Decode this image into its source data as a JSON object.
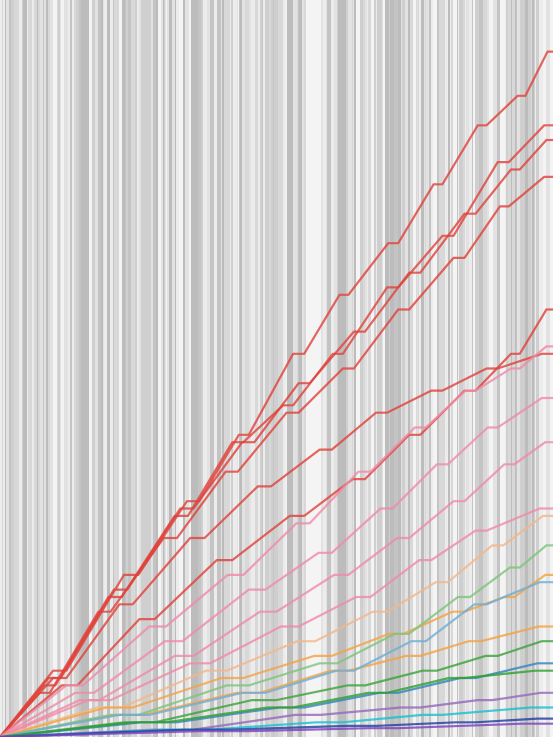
{
  "chart_data": {
    "type": "line",
    "step": true,
    "title": "",
    "xlabel": "",
    "ylabel": "",
    "axes_visible": false,
    "grid": false,
    "legend": "none",
    "xlim": [
      0,
      1
    ],
    "ylim": [
      0,
      1
    ],
    "background": {
      "style": "vertical-stripes",
      "colors": [
        "#cfcfcf",
        "#d8d8d8",
        "#e2e2e2",
        "#ececec",
        "#f4f4f4",
        "#c4c4c4",
        "#bcbcbc"
      ]
    },
    "series": [
      {
        "color": "#e0413a",
        "points": [
          [
            0.0,
            0.0
          ],
          [
            0.12,
            0.09
          ],
          [
            0.25,
            0.22
          ],
          [
            0.36,
            0.32
          ],
          [
            0.45,
            0.41
          ],
          [
            0.55,
            0.52
          ],
          [
            0.63,
            0.6
          ],
          [
            0.72,
            0.67
          ],
          [
            0.8,
            0.75
          ],
          [
            0.88,
            0.83
          ],
          [
            0.95,
            0.87
          ],
          [
            1.0,
            0.93
          ]
        ]
      },
      {
        "color": "#e0413a",
        "points": [
          [
            0.0,
            0.0
          ],
          [
            0.1,
            0.07
          ],
          [
            0.22,
            0.19
          ],
          [
            0.34,
            0.3
          ],
          [
            0.44,
            0.4
          ],
          [
            0.53,
            0.45
          ],
          [
            0.62,
            0.52
          ],
          [
            0.72,
            0.61
          ],
          [
            0.82,
            0.68
          ],
          [
            0.92,
            0.78
          ],
          [
            1.0,
            0.83
          ]
        ]
      },
      {
        "color": "#e0413a",
        "points": [
          [
            0.0,
            0.0
          ],
          [
            0.11,
            0.08
          ],
          [
            0.23,
            0.2
          ],
          [
            0.35,
            0.31
          ],
          [
            0.46,
            0.4
          ],
          [
            0.56,
            0.48
          ],
          [
            0.66,
            0.55
          ],
          [
            0.76,
            0.63
          ],
          [
            0.86,
            0.71
          ],
          [
            0.94,
            0.77
          ],
          [
            1.0,
            0.81
          ]
        ]
      },
      {
        "color": "#e0413a",
        "points": [
          [
            0.0,
            0.0
          ],
          [
            0.09,
            0.06
          ],
          [
            0.2,
            0.17
          ],
          [
            0.32,
            0.27
          ],
          [
            0.43,
            0.36
          ],
          [
            0.54,
            0.44
          ],
          [
            0.64,
            0.5
          ],
          [
            0.74,
            0.58
          ],
          [
            0.84,
            0.65
          ],
          [
            0.92,
            0.72
          ],
          [
            1.0,
            0.76
          ]
        ]
      },
      {
        "color": "#e0413a",
        "points": [
          [
            0.0,
            0.0
          ],
          [
            0.12,
            0.08
          ],
          [
            0.24,
            0.18
          ],
          [
            0.37,
            0.27
          ],
          [
            0.49,
            0.34
          ],
          [
            0.6,
            0.39
          ],
          [
            0.7,
            0.44
          ],
          [
            0.8,
            0.47
          ],
          [
            0.9,
            0.5
          ],
          [
            1.0,
            0.52
          ]
        ]
      },
      {
        "color": "#e0413a",
        "points": [
          [
            0.0,
            0.0
          ],
          [
            0.14,
            0.07
          ],
          [
            0.28,
            0.16
          ],
          [
            0.42,
            0.24
          ],
          [
            0.55,
            0.3
          ],
          [
            0.66,
            0.35
          ],
          [
            0.76,
            0.41
          ],
          [
            0.86,
            0.47
          ],
          [
            0.94,
            0.52
          ],
          [
            1.0,
            0.58
          ]
        ]
      },
      {
        "color": "#f08aa8",
        "points": [
          [
            0.0,
            0.0
          ],
          [
            0.15,
            0.07
          ],
          [
            0.3,
            0.15
          ],
          [
            0.44,
            0.22
          ],
          [
            0.56,
            0.29
          ],
          [
            0.67,
            0.36
          ],
          [
            0.77,
            0.42
          ],
          [
            0.86,
            0.47
          ],
          [
            0.94,
            0.5
          ],
          [
            1.0,
            0.53
          ]
        ]
      },
      {
        "color": "#f08aa8",
        "points": [
          [
            0.0,
            0.0
          ],
          [
            0.17,
            0.06
          ],
          [
            0.33,
            0.13
          ],
          [
            0.48,
            0.2
          ],
          [
            0.6,
            0.25
          ],
          [
            0.71,
            0.31
          ],
          [
            0.81,
            0.37
          ],
          [
            0.9,
            0.42
          ],
          [
            1.0,
            0.46
          ]
        ]
      },
      {
        "color": "#f08aa8",
        "points": [
          [
            0.0,
            0.0
          ],
          [
            0.18,
            0.05
          ],
          [
            0.35,
            0.11
          ],
          [
            0.5,
            0.17
          ],
          [
            0.63,
            0.22
          ],
          [
            0.74,
            0.27
          ],
          [
            0.84,
            0.32
          ],
          [
            0.93,
            0.37
          ],
          [
            1.0,
            0.4
          ]
        ]
      },
      {
        "color": "#f08aa8",
        "points": [
          [
            0.0,
            0.0
          ],
          [
            0.2,
            0.05
          ],
          [
            0.38,
            0.1
          ],
          [
            0.54,
            0.15
          ],
          [
            0.67,
            0.19
          ],
          [
            0.78,
            0.24
          ],
          [
            0.88,
            0.28
          ],
          [
            1.0,
            0.31
          ]
        ]
      },
      {
        "color": "#f3b78a",
        "points": [
          [
            0.0,
            0.0
          ],
          [
            0.22,
            0.04
          ],
          [
            0.41,
            0.09
          ],
          [
            0.57,
            0.13
          ],
          [
            0.7,
            0.17
          ],
          [
            0.81,
            0.21
          ],
          [
            0.91,
            0.26
          ],
          [
            1.0,
            0.3
          ]
        ]
      },
      {
        "color": "#f3a343",
        "points": [
          [
            0.0,
            0.0
          ],
          [
            0.24,
            0.04
          ],
          [
            0.44,
            0.08
          ],
          [
            0.6,
            0.11
          ],
          [
            0.73,
            0.14
          ],
          [
            0.84,
            0.17
          ],
          [
            0.93,
            0.19
          ],
          [
            1.0,
            0.22
          ]
        ]
      },
      {
        "color": "#f3a343",
        "points": [
          [
            0.0,
            0.0
          ],
          [
            0.26,
            0.03
          ],
          [
            0.47,
            0.06
          ],
          [
            0.63,
            0.09
          ],
          [
            0.76,
            0.11
          ],
          [
            0.87,
            0.13
          ],
          [
            1.0,
            0.15
          ]
        ]
      },
      {
        "color": "#7cc47a",
        "points": [
          [
            0.0,
            0.0
          ],
          [
            0.25,
            0.03
          ],
          [
            0.45,
            0.07
          ],
          [
            0.61,
            0.1
          ],
          [
            0.74,
            0.14
          ],
          [
            0.85,
            0.19
          ],
          [
            0.94,
            0.23
          ],
          [
            1.0,
            0.26
          ]
        ]
      },
      {
        "color": "#3aa23a",
        "points": [
          [
            0.0,
            0.0
          ],
          [
            0.28,
            0.02
          ],
          [
            0.5,
            0.05
          ],
          [
            0.66,
            0.07
          ],
          [
            0.79,
            0.09
          ],
          [
            0.9,
            0.11
          ],
          [
            1.0,
            0.13
          ]
        ]
      },
      {
        "color": "#6baed6",
        "points": [
          [
            0.0,
            0.0
          ],
          [
            0.27,
            0.03
          ],
          [
            0.48,
            0.06
          ],
          [
            0.64,
            0.09
          ],
          [
            0.77,
            0.13
          ],
          [
            0.88,
            0.18
          ],
          [
            1.0,
            0.21
          ]
        ]
      },
      {
        "color": "#3182bd",
        "points": [
          [
            0.0,
            0.0
          ],
          [
            0.32,
            0.02
          ],
          [
            0.55,
            0.04
          ],
          [
            0.72,
            0.06
          ],
          [
            0.86,
            0.08
          ],
          [
            1.0,
            0.1
          ]
        ]
      },
      {
        "color": "#9467bd",
        "points": [
          [
            0.0,
            0.0
          ],
          [
            0.35,
            0.01
          ],
          [
            0.58,
            0.03
          ],
          [
            0.76,
            0.04
          ],
          [
            0.89,
            0.05
          ],
          [
            1.0,
            0.06
          ]
        ]
      },
      {
        "color": "#17becf",
        "points": [
          [
            0.0,
            0.0
          ],
          [
            0.38,
            0.01
          ],
          [
            0.62,
            0.02
          ],
          [
            0.8,
            0.03
          ],
          [
            1.0,
            0.04
          ]
        ]
      },
      {
        "color": "#2ca02c",
        "points": [
          [
            0.0,
            0.0
          ],
          [
            0.3,
            0.02
          ],
          [
            0.53,
            0.04
          ],
          [
            0.7,
            0.06
          ],
          [
            0.84,
            0.08
          ],
          [
            1.0,
            0.09
          ]
        ]
      },
      {
        "color": "#1f3f9f",
        "points": [
          [
            0.0,
            0.0
          ],
          [
            0.42,
            0.01
          ],
          [
            0.68,
            0.015
          ],
          [
            0.86,
            0.02
          ],
          [
            1.0,
            0.025
          ]
        ]
      },
      {
        "color": "#7b3fbf",
        "points": [
          [
            0.0,
            0.0
          ],
          [
            0.45,
            0.008
          ],
          [
            0.72,
            0.012
          ],
          [
            1.0,
            0.018
          ]
        ]
      }
    ]
  }
}
